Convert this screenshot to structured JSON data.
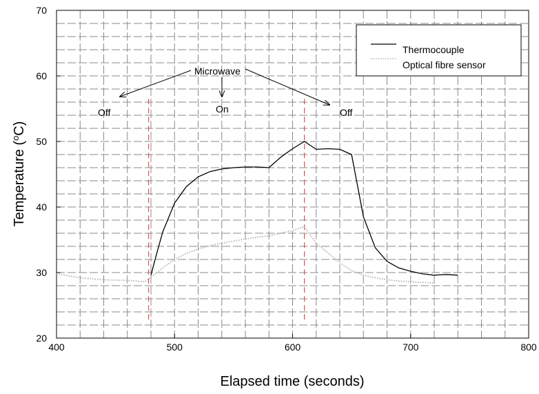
{
  "chart_data": {
    "type": "line",
    "xlabel": "Elapsed time (seconds)",
    "ylabel": "Temperature (",
    "ylabel_sup": "o",
    "ylabel_end": "C)",
    "xlim": [
      400,
      800
    ],
    "ylim": [
      20,
      70
    ],
    "x_ticks": [
      "400",
      "500",
      "600",
      "700",
      "800"
    ],
    "y_ticks": [
      "20",
      "30",
      "40",
      "50",
      "60",
      "70"
    ],
    "grid": "dashed",
    "legend_position": "top-right",
    "series": [
      {
        "name": "Thermocouple",
        "color": "#000000",
        "style": "solid",
        "x": [
          480,
          485,
          490,
          500,
          510,
          520,
          530,
          540,
          550,
          560,
          570,
          580,
          585,
          590,
          600,
          610,
          620,
          630,
          640,
          650,
          660,
          670,
          680,
          690,
          700,
          710,
          720,
          730,
          740
        ],
        "y": [
          29.6,
          33.0,
          36.2,
          40.6,
          43.1,
          44.6,
          45.4,
          45.8,
          46.0,
          46.1,
          46.1,
          46.0,
          46.8,
          47.6,
          48.9,
          50.0,
          48.8,
          48.9,
          48.8,
          48.0,
          38.5,
          33.8,
          31.7,
          30.7,
          30.2,
          29.8,
          29.6,
          29.7,
          29.6
        ]
      },
      {
        "name": "Optical fibre sensor",
        "color": "#b4b4b4",
        "style": "dotted",
        "x": [
          400,
          420,
          440,
          460,
          475,
          480,
          490,
          500,
          510,
          520,
          530,
          540,
          550,
          560,
          570,
          580,
          590,
          600,
          610,
          620,
          630,
          640,
          650,
          660,
          670,
          680,
          690,
          700,
          710,
          720
        ],
        "y": [
          29.8,
          29.2,
          28.9,
          28.8,
          28.6,
          29.3,
          30.7,
          32.0,
          32.9,
          33.6,
          34.1,
          34.5,
          34.8,
          35.1,
          35.4,
          35.6,
          36.0,
          36.4,
          37.0,
          34.5,
          33.0,
          31.5,
          30.3,
          29.6,
          29.2,
          28.9,
          28.7,
          28.6,
          28.5,
          28.4
        ]
      }
    ],
    "vlines": [
      {
        "x": 478,
        "y_from": 22.5,
        "y_to": 56.5,
        "color": "#e05050"
      },
      {
        "x": 610,
        "y_from": 22.5,
        "y_to": 56.5,
        "color": "#e05050"
      }
    ],
    "annotations": {
      "microwave": "Microwave",
      "off_left": "Off",
      "on": "On",
      "off_right": "Off"
    }
  }
}
